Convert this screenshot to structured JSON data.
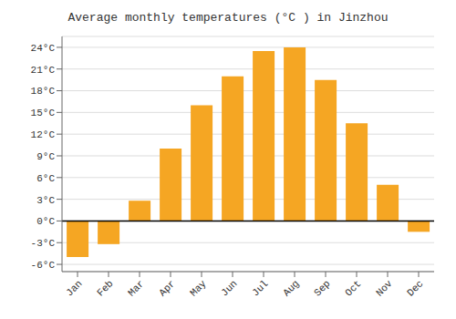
{
  "chart_data": {
    "type": "bar",
    "title": "Average monthly temperatures (°C ) in Jinzhou",
    "categories": [
      "Jan",
      "Feb",
      "Mar",
      "Apr",
      "May",
      "Jun",
      "Jul",
      "Aug",
      "Sep",
      "Oct",
      "Nov",
      "Dec"
    ],
    "values": [
      -5.0,
      -3.2,
      2.8,
      10.0,
      16.0,
      20.0,
      23.5,
      24.0,
      19.5,
      13.5,
      5.0,
      -1.5
    ],
    "color": "#F5A623",
    "ylim": [
      -7.0,
      25.5
    ],
    "yticks": [
      {
        "value": -6,
        "label": "-6°C"
      },
      {
        "value": -3,
        "label": "-3°C"
      },
      {
        "value": 0,
        "label": "0°C"
      },
      {
        "value": 3,
        "label": "3°C"
      },
      {
        "value": 6,
        "label": "6°C"
      },
      {
        "value": 9,
        "label": "9°C"
      },
      {
        "value": 12,
        "label": "12°C"
      },
      {
        "value": 15,
        "label": "15°C"
      },
      {
        "value": 18,
        "label": "18°C"
      },
      {
        "value": 21,
        "label": "21°C"
      },
      {
        "value": 24,
        "label": "24°C"
      }
    ],
    "grid": true
  }
}
